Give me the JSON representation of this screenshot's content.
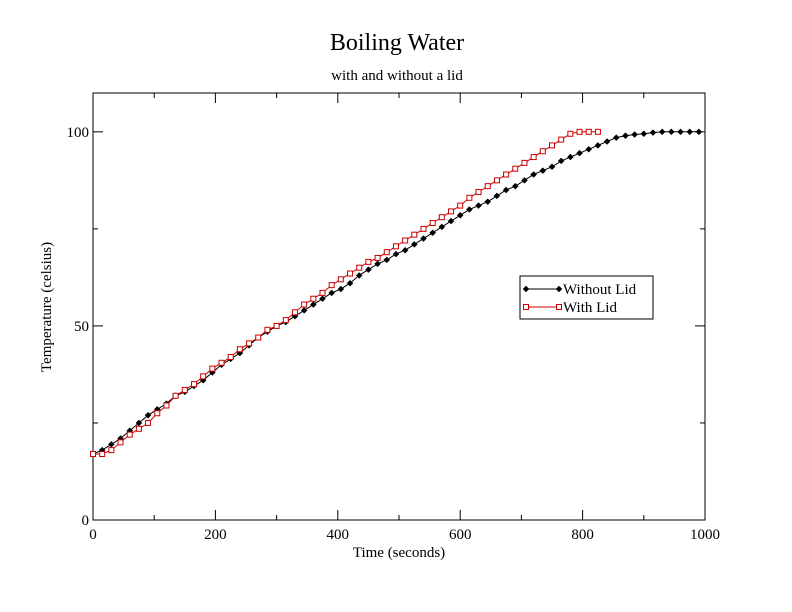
{
  "chart_data": {
    "type": "line",
    "title": "Boiling Water",
    "subtitle": "with and without a lid",
    "xlabel": "Time (seconds)",
    "ylabel": "Temperature (celsius)",
    "xlim": [
      0,
      1000
    ],
    "ylim": [
      0,
      110
    ],
    "xticks": [
      0,
      200,
      400,
      600,
      800,
      1000
    ],
    "xtick_labels": [
      "0",
      "200",
      "400",
      "600",
      "800",
      "1000"
    ],
    "yticks": [
      0,
      50,
      100
    ],
    "ytick_labels": [
      "0",
      "50",
      "100"
    ],
    "x_minor_step": 100,
    "y_minor_step": 25,
    "grid": false,
    "legend_position": "center-right",
    "series": [
      {
        "name": "Without Lid",
        "color": "#000000",
        "marker": "diamond",
        "x": [
          0,
          15,
          30,
          45,
          60,
          75,
          90,
          105,
          120,
          135,
          150,
          165,
          180,
          195,
          210,
          225,
          240,
          255,
          270,
          285,
          300,
          315,
          330,
          345,
          360,
          375,
          390,
          405,
          420,
          435,
          450,
          465,
          480,
          495,
          510,
          525,
          540,
          555,
          570,
          585,
          600,
          615,
          630,
          645,
          660,
          675,
          690,
          705,
          720,
          735,
          750,
          765,
          780,
          795,
          810,
          825,
          840,
          855,
          870,
          885,
          900,
          915,
          930,
          945,
          960,
          975,
          990
        ],
        "values": [
          17,
          18,
          19.5,
          21,
          23,
          25,
          27,
          28.5,
          30,
          32,
          33,
          34.5,
          36,
          38,
          40,
          41.5,
          43,
          45,
          47,
          48.5,
          50,
          51,
          52.5,
          54,
          55.5,
          57,
          58.5,
          59.5,
          61,
          63,
          64.5,
          66,
          67,
          68.5,
          69.5,
          71,
          72.5,
          74,
          75.5,
          77,
          78.5,
          80,
          81,
          82,
          83.5,
          85,
          86,
          87.5,
          89,
          90,
          91,
          92.5,
          93.5,
          94.5,
          95.5,
          96.5,
          97.5,
          98.5,
          99,
          99.3,
          99.5,
          99.8,
          100,
          100,
          100,
          100,
          100
        ]
      },
      {
        "name": "With Lid",
        "color": "#cc0000",
        "marker": "square",
        "x": [
          0,
          15,
          30,
          45,
          60,
          75,
          90,
          105,
          120,
          135,
          150,
          165,
          180,
          195,
          210,
          225,
          240,
          255,
          270,
          285,
          300,
          315,
          330,
          345,
          360,
          375,
          390,
          405,
          420,
          435,
          450,
          465,
          480,
          495,
          510,
          525,
          540,
          555,
          570,
          585,
          600,
          615,
          630,
          645,
          660,
          675,
          690,
          705,
          720,
          735,
          750,
          765,
          780,
          795,
          810,
          825
        ],
        "values": [
          17,
          17,
          18,
          20,
          22,
          23.5,
          25,
          27.5,
          29.5,
          32,
          33.5,
          35,
          37,
          39,
          40.5,
          42,
          44,
          45.5,
          47,
          49,
          50,
          51.5,
          53.5,
          55.5,
          57,
          58.5,
          60.5,
          62,
          63.5,
          65,
          66.5,
          67.5,
          69,
          70.5,
          72,
          73.5,
          75,
          76.5,
          78,
          79.5,
          81,
          83,
          84.5,
          86,
          87.5,
          89,
          90.5,
          92,
          93.5,
          95,
          96.5,
          98,
          99.5,
          100,
          100,
          100
        ]
      }
    ]
  }
}
